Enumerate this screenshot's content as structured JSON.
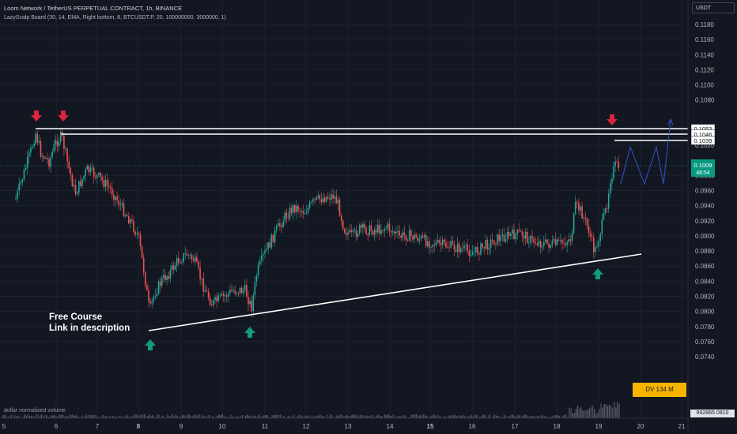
{
  "header": {
    "title": "Loom Network / TetherUS PERPETUAL CONTRACT, 1h, BINANCE",
    "indicator": "LazyScalp Board (30, 14, EMA, Right bottom, 8, BTCUSDT.P, 20, 100000000, 3000000, 1)"
  },
  "currency_button": "USDT",
  "annotation": {
    "line1": "Free Course",
    "line2": "Link in description"
  },
  "dv_badge": "DV 134 M",
  "volume": {
    "label": "dollar normalized volume",
    "value": "992865.0810"
  },
  "price_axis": {
    "ticks": [
      "0.1180",
      "0.1160",
      "0.1140",
      "0.1120",
      "0.1100",
      "0.1080",
      "0.1020",
      "0.0980",
      "0.0960",
      "0.0940",
      "0.0920",
      "0.0900",
      "0.0880",
      "0.0860",
      "0.0840",
      "0.0820",
      "0.0800",
      "0.0780",
      "0.0760",
      "0.0740"
    ],
    "levels": [
      "0.1053",
      "0.1046",
      "0.1039"
    ],
    "current": {
      "price": "0.1009",
      "countdown": "46:54"
    }
  },
  "time_axis": [
    "5",
    "6",
    "7",
    "8",
    "9",
    "10",
    "11",
    "12",
    "13",
    "14",
    "15",
    "16",
    "17",
    "18",
    "19",
    "20",
    "21"
  ],
  "colors": {
    "background": "#131722",
    "up": "#26a69a",
    "down": "#ef5350",
    "arrow_down": "#d7263d",
    "arrow_up": "#0f9d7a",
    "projection": "#2f57c9",
    "dv_badge": "#f7b500"
  },
  "chart_data": {
    "type": "candlestick",
    "x": [
      "5",
      "6",
      "7",
      "8",
      "9",
      "10",
      "11",
      "12",
      "13",
      "14",
      "15",
      "16",
      "17",
      "18",
      "19"
    ],
    "close": [
      0.0985,
      0.101,
      0.099,
      0.086,
      0.088,
      0.0855,
      0.0915,
      0.0975,
      0.0925,
      0.093,
      0.0925,
      0.0915,
      0.0925,
      0.0915,
      0.099
    ],
    "high_swing": 0.1053,
    "low_swing": 0.082,
    "ylim": [
      0.073,
      0.119
    ],
    "resistance_levels": [
      0.1053,
      0.1046,
      0.1039
    ],
    "support_line": [
      {
        "x": "8",
        "y": 0.0815
      },
      {
        "x": "20",
        "y": 0.0903
      }
    ],
    "current_price": 0.1009
  }
}
